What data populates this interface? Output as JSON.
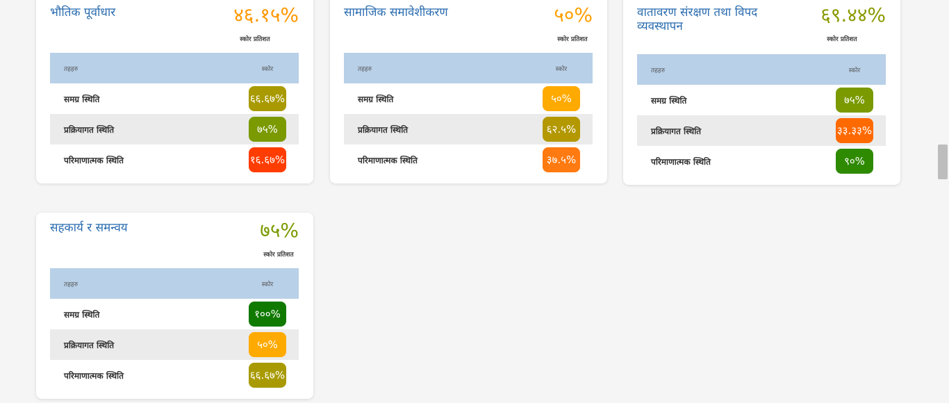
{
  "colors": {
    "title": "#2a6cb0",
    "table_header_bg": "#b8d0e8",
    "alt_row_bg": "#ebebeb"
  },
  "cards": [
    {
      "title": "भौतिक पूर्वाधार",
      "score": "४६.१५%",
      "score_color": "#ff9800",
      "score_label": "स्कोर प्रतिशत",
      "table_headers": [
        "तहहरु",
        "स्कोर"
      ],
      "rows": [
        {
          "label": "समग्र स्थिति",
          "value": "६६.६७%",
          "color": "#a89a00"
        },
        {
          "label": "प्रक्रियागत स्थिति",
          "value": "७५%",
          "color": "#7a9a00"
        },
        {
          "label": "परिमाणात्मक स्थिति",
          "value": "१६.६७%",
          "color": "#ff3d00"
        }
      ]
    },
    {
      "title": "सामाजिक समावेशीकरण",
      "score": "५०%",
      "score_color": "#ffa000",
      "score_label": "स्कोर प्रतिशत",
      "table_headers": [
        "तहहरु",
        "स्कोर"
      ],
      "rows": [
        {
          "label": "समग्र स्थिति",
          "value": "५०%",
          "color": "#ffaa00"
        },
        {
          "label": "प्रक्रियागत स्थिति",
          "value": "६२.५%",
          "color": "#b39800"
        },
        {
          "label": "परिमाणात्मक स्थिति",
          "value": "३७.५%",
          "color": "#ff7a10"
        }
      ]
    },
    {
      "title": "वातावरण संरक्षण तथा विपद व्यवस्थापन",
      "score": "६९.४४%",
      "score_color": "#8a9a00",
      "score_label": "स्कोर प्रतिशत",
      "table_headers": [
        "तहहरु",
        "स्कोर"
      ],
      "rows": [
        {
          "label": "समग्र स्थिति",
          "value": "७५%",
          "color": "#7a9a00"
        },
        {
          "label": "प्रक्रियागत स्थिति",
          "value": "३३.३३%",
          "color": "#ff6a00"
        },
        {
          "label": "परिमाणात्मक स्थिति",
          "value": "९०%",
          "color": "#2e8a00"
        }
      ]
    },
    {
      "title": "सहकार्य र समन्वय",
      "score": "७५%",
      "score_color": "#7a9a00",
      "score_label": "स्कोर प्रतिशत",
      "table_headers": [
        "तहहरु",
        "स्कोर"
      ],
      "rows": [
        {
          "label": "समग्र स्थिति",
          "value": "१००%",
          "color": "#107a00"
        },
        {
          "label": "प्रक्रियागत स्थिति",
          "value": "५०%",
          "color": "#ffaa00"
        },
        {
          "label": "परिमाणात्मक स्थिति",
          "value": "६६.६७%",
          "color": "#a89a00"
        }
      ]
    }
  ]
}
